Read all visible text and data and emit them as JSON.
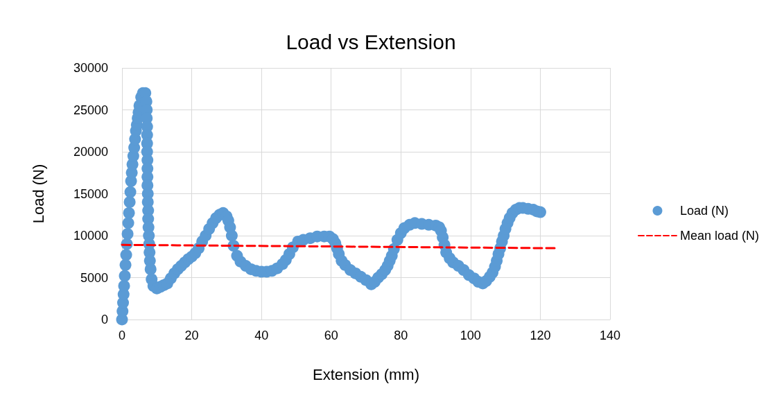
{
  "chart_data": {
    "type": "scatter",
    "title": "Load vs Extension",
    "xlabel": "Extension (mm)",
    "ylabel": "Load (N)",
    "xlim": [
      0,
      140
    ],
    "xticks": [
      0,
      20,
      40,
      60,
      80,
      100,
      120,
      140
    ],
    "ylim": [
      0,
      30000
    ],
    "yticks": [
      0,
      5000,
      10000,
      15000,
      20000,
      25000,
      30000
    ],
    "grid": true,
    "legend": "right",
    "series": [
      {
        "name": "Load (N)",
        "marker": "circle",
        "color": "#5b9bd5",
        "x": [
          0,
          0.15,
          0.3,
          0.45,
          0.6,
          0.8,
          1,
          1.2,
          1.4,
          1.6,
          1.8,
          2,
          2.2,
          2.4,
          2.6,
          2.8,
          3,
          3.25,
          3.5,
          3.75,
          4,
          4.25,
          4.5,
          4.75,
          5,
          5.5,
          6,
          6.7,
          7,
          7.1,
          7.1,
          7.2,
          7.2,
          7.2,
          7.2,
          7.3,
          7.3,
          7.3,
          7.3,
          7.4,
          7.4,
          7.5,
          7.5,
          7.6,
          7.7,
          7.8,
          7.9,
          8,
          8.2,
          8.5,
          9,
          10,
          11,
          12,
          13,
          14,
          15,
          16,
          17,
          18,
          19,
          20,
          21,
          22,
          23,
          24,
          25,
          26,
          27,
          28,
          29,
          30,
          30.5,
          31,
          31.5,
          32,
          33,
          34,
          35.5,
          37,
          38.5,
          40,
          41.5,
          43,
          44.5,
          46,
          47,
          48,
          49,
          50.5,
          52,
          54,
          56,
          58,
          59.5,
          60.5,
          61.2,
          61.7,
          62.2,
          63,
          64,
          65.5,
          67,
          68.5,
          70,
          71.5,
          72.5,
          73.5,
          74.5,
          75.5,
          76.2,
          76.8,
          77.4,
          78,
          79,
          80,
          81,
          82.5,
          84,
          86,
          88,
          90,
          91,
          91.5,
          92,
          92.5,
          93,
          94,
          95,
          96.5,
          98,
          99.5,
          101,
          102.2,
          103.5,
          104.5,
          105.5,
          106.3,
          107,
          107.5,
          108,
          108.5,
          109,
          109.5,
          110,
          110.6,
          111.2,
          112,
          113,
          114,
          115,
          116.5,
          118,
          119,
          120
        ],
        "values": [
          0,
          1000,
          2000,
          3000,
          4000,
          5200,
          6500,
          7700,
          9000,
          10200,
          11500,
          12700,
          14000,
          15200,
          16500,
          17500,
          18500,
          19500,
          20500,
          21500,
          22500,
          23200,
          24000,
          24700,
          25500,
          26500,
          27000,
          27000,
          26000,
          25000,
          24000,
          23000,
          22000,
          21000,
          20000,
          19000,
          18000,
          17000,
          16000,
          15000,
          14000,
          13000,
          12000,
          11000,
          10000,
          9000,
          8000,
          7000,
          6000,
          4800,
          4000,
          3700,
          3900,
          4100,
          4300,
          4900,
          5500,
          6000,
          6400,
          6800,
          7200,
          7500,
          7900,
          8500,
          9300,
          10000,
          10800,
          11500,
          12100,
          12500,
          12700,
          12300,
          11800,
          11000,
          10000,
          8800,
          7600,
          6900,
          6400,
          6000,
          5800,
          5700,
          5700,
          5800,
          6100,
          6600,
          7100,
          7800,
          8600,
          9300,
          9500,
          9700,
          9900,
          9900,
          9900,
          9600,
          9100,
          8500,
          7800,
          7000,
          6500,
          5900,
          5500,
          5100,
          4700,
          4200,
          4500,
          5000,
          5400,
          5900,
          6400,
          7000,
          7600,
          8400,
          9500,
          10300,
          10900,
          11300,
          11500,
          11400,
          11300,
          11200,
          11000,
          10600,
          9800,
          8900,
          8000,
          7300,
          6800,
          6400,
          5900,
          5300,
          4900,
          4500,
          4300,
          4600,
          5100,
          5600,
          6300,
          7000,
          7800,
          8500,
          9300,
          10000,
          10800,
          11500,
          12100,
          12700,
          13100,
          13300,
          13300,
          13200,
          13100,
          12900,
          12800
        ]
      },
      {
        "name": "Mean load (N)",
        "type": "line",
        "marker": "none",
        "line_style": "dashed",
        "color": "#ff0000",
        "x": [
          0,
          125
        ],
        "values": [
          8900,
          8500
        ]
      }
    ]
  }
}
